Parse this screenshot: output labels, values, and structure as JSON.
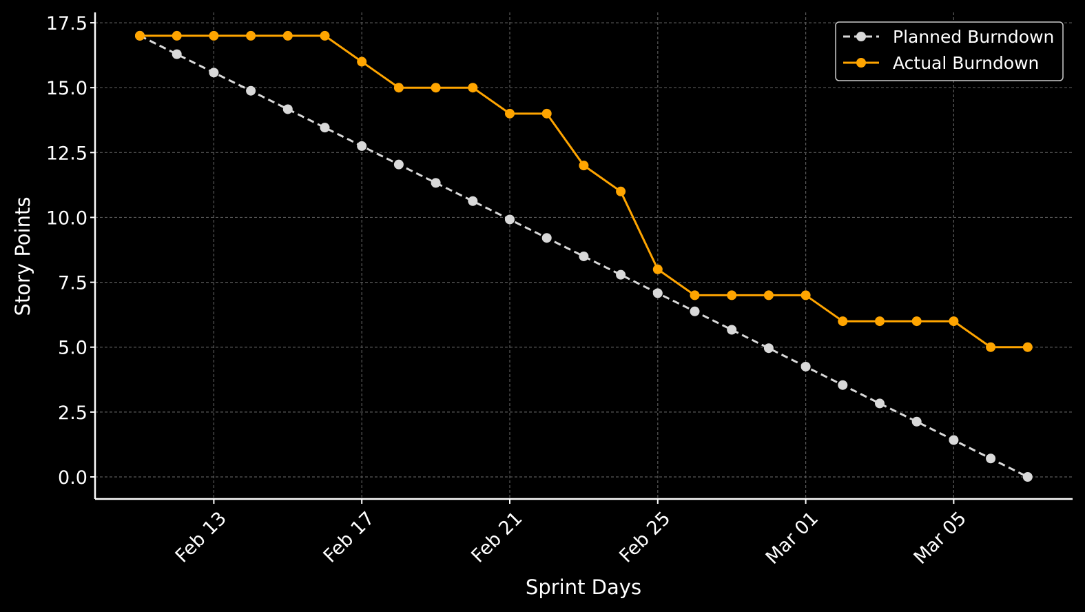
{
  "chart_data": {
    "type": "line",
    "title": "",
    "xlabel": "Sprint Days",
    "ylabel": "Story Points",
    "x": [
      "Feb 11",
      "Feb 12",
      "Feb 13",
      "Feb 14",
      "Feb 15",
      "Feb 16",
      "Feb 17",
      "Feb 18",
      "Feb 19",
      "Feb 20",
      "Feb 21",
      "Feb 22",
      "Feb 23",
      "Feb 24",
      "Feb 25",
      "Feb 26",
      "Feb 27",
      "Feb 28",
      "Mar 01",
      "Mar 02",
      "Mar 03",
      "Mar 04",
      "Mar 05",
      "Mar 06",
      "Mar 07"
    ],
    "x_ticks": [
      "Feb 13",
      "Feb 17",
      "Feb 21",
      "Feb 25",
      "Mar 01",
      "Mar 05"
    ],
    "y_ticks": [
      "0.0",
      "2.5",
      "5.0",
      "7.5",
      "10.0",
      "12.5",
      "15.0",
      "17.5"
    ],
    "ylim": [
      -0.85,
      17.9
    ],
    "grid": true,
    "legend_position": "top-right",
    "series": [
      {
        "name": "Planned Burndown",
        "color": "#d9d9d9",
        "line_style": "dashed",
        "values": [
          17.0,
          16.29,
          15.58,
          14.88,
          14.17,
          13.46,
          12.75,
          12.04,
          11.33,
          10.63,
          9.92,
          9.21,
          8.5,
          7.79,
          7.08,
          6.38,
          5.67,
          4.96,
          4.25,
          3.54,
          2.83,
          2.13,
          1.42,
          0.71,
          0.0
        ]
      },
      {
        "name": "Actual Burndown",
        "color": "#ffa500",
        "line_style": "solid",
        "values": [
          17,
          17,
          17,
          17,
          17,
          17,
          16,
          15,
          15,
          15,
          14,
          14,
          12,
          11,
          8,
          7,
          7,
          7,
          7,
          6,
          6,
          6,
          6,
          5,
          5
        ]
      }
    ]
  }
}
